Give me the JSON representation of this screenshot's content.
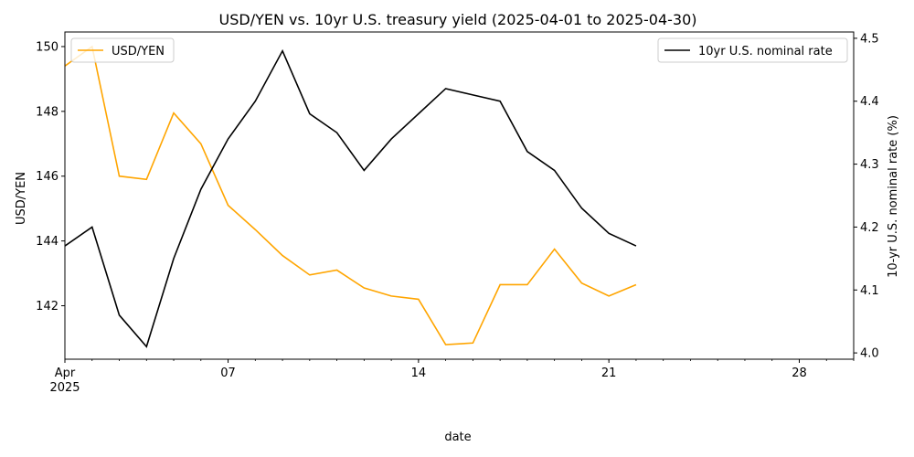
{
  "chart_data": {
    "type": "line",
    "title": "USD/YEN vs. 10yr U.S. treasury yield (2025-04-01 to 2025-04-30)",
    "xlabel": "date",
    "ylabel_left": "USD/YEN",
    "ylabel_right": "10-yr U.S. nominal rate (%)",
    "x": [
      "2025-04-01",
      "2025-04-02",
      "2025-04-03",
      "2025-04-04",
      "2025-04-05",
      "2025-04-06",
      "2025-04-07",
      "2025-04-08",
      "2025-04-09",
      "2025-04-10",
      "2025-04-11",
      "2025-04-12",
      "2025-04-13",
      "2025-04-14",
      "2025-04-15",
      "2025-04-16",
      "2025-04-17",
      "2025-04-18",
      "2025-04-19",
      "2025-04-20",
      "2025-04-21",
      "2025-04-22",
      "2025-04-23",
      "2025-04-24",
      "2025-04-25",
      "2025-04-26",
      "2025-04-27",
      "2025-04-28",
      "2025-04-29",
      "2025-04-30"
    ],
    "xlim": [
      "2025-04-01",
      "2025-04-30"
    ],
    "x_tick_labels": [
      {
        "date": "2025-04-01",
        "label": "Apr",
        "sublabel": "2025"
      },
      {
        "date": "2025-04-07",
        "label": "07"
      },
      {
        "date": "2025-04-14",
        "label": "14"
      },
      {
        "date": "2025-04-21",
        "label": "21"
      },
      {
        "date": "2025-04-28",
        "label": "28"
      }
    ],
    "series": [
      {
        "name": "USD/YEN",
        "axis": "left",
        "color": "#ffa500",
        "points": [
          [
            "2025-04-01",
            149.4
          ],
          [
            "2025-04-02",
            150.0
          ],
          [
            "2025-04-03",
            146.0
          ],
          [
            "2025-04-04",
            145.9
          ],
          [
            "2025-04-05",
            147.95
          ],
          [
            "2025-04-06",
            147.0
          ],
          [
            "2025-04-07",
            145.1
          ],
          [
            "2025-04-08",
            144.35
          ],
          [
            "2025-04-09",
            143.55
          ],
          [
            "2025-04-10",
            142.95
          ],
          [
            "2025-04-11",
            143.1
          ],
          [
            "2025-04-12",
            142.55
          ],
          [
            "2025-04-13",
            142.3
          ],
          [
            "2025-04-14",
            142.2
          ],
          [
            "2025-04-15",
            140.8
          ],
          [
            "2025-04-16",
            140.85
          ],
          [
            "2025-04-17",
            142.65
          ],
          [
            "2025-04-18",
            142.65
          ],
          [
            "2025-04-19",
            143.75
          ],
          [
            "2025-04-20",
            142.7
          ],
          [
            "2025-04-21",
            142.3
          ],
          [
            "2025-04-22",
            142.65
          ]
        ]
      },
      {
        "name": "10yr U.S. nominal rate",
        "axis": "right",
        "color": "#000000",
        "points": [
          [
            "2025-04-01",
            4.17
          ],
          [
            "2025-04-02",
            4.2
          ],
          [
            "2025-04-03",
            4.06
          ],
          [
            "2025-04-04",
            4.01
          ],
          [
            "2025-04-05",
            4.15
          ],
          [
            "2025-04-06",
            4.26
          ],
          [
            "2025-04-07",
            4.34
          ],
          [
            "2025-04-08",
            4.4
          ],
          [
            "2025-04-09",
            4.48
          ],
          [
            "2025-04-10",
            4.38
          ],
          [
            "2025-04-11",
            4.35
          ],
          [
            "2025-04-12",
            4.29
          ],
          [
            "2025-04-13",
            4.34
          ],
          [
            "2025-04-14",
            4.38
          ],
          [
            "2025-04-15",
            4.42
          ],
          [
            "2025-04-16",
            4.41
          ],
          [
            "2025-04-17",
            4.4
          ],
          [
            "2025-04-18",
            4.32
          ],
          [
            "2025-04-19",
            4.29
          ],
          [
            "2025-04-20",
            4.23
          ],
          [
            "2025-04-21",
            4.19
          ],
          [
            "2025-04-22",
            4.17
          ]
        ]
      }
    ],
    "ylim_left": [
      140.35,
      150.45
    ],
    "ylim_right": [
      3.99,
      4.51
    ],
    "yticks_left": [
      142,
      144,
      146,
      148,
      150
    ],
    "yticks_right": [
      4.0,
      4.1,
      4.2,
      4.3,
      4.4,
      4.5
    ],
    "ytick_labels_right": [
      "4.0",
      "4.1",
      "4.2",
      "4.3",
      "4.4",
      "4.5"
    ],
    "grid": false,
    "legend_left": {
      "placement": "top-left",
      "entries": [
        "USD/YEN"
      ]
    },
    "legend_right": {
      "placement": "top-right",
      "entries": [
        "10yr U.S. nominal rate"
      ]
    }
  }
}
